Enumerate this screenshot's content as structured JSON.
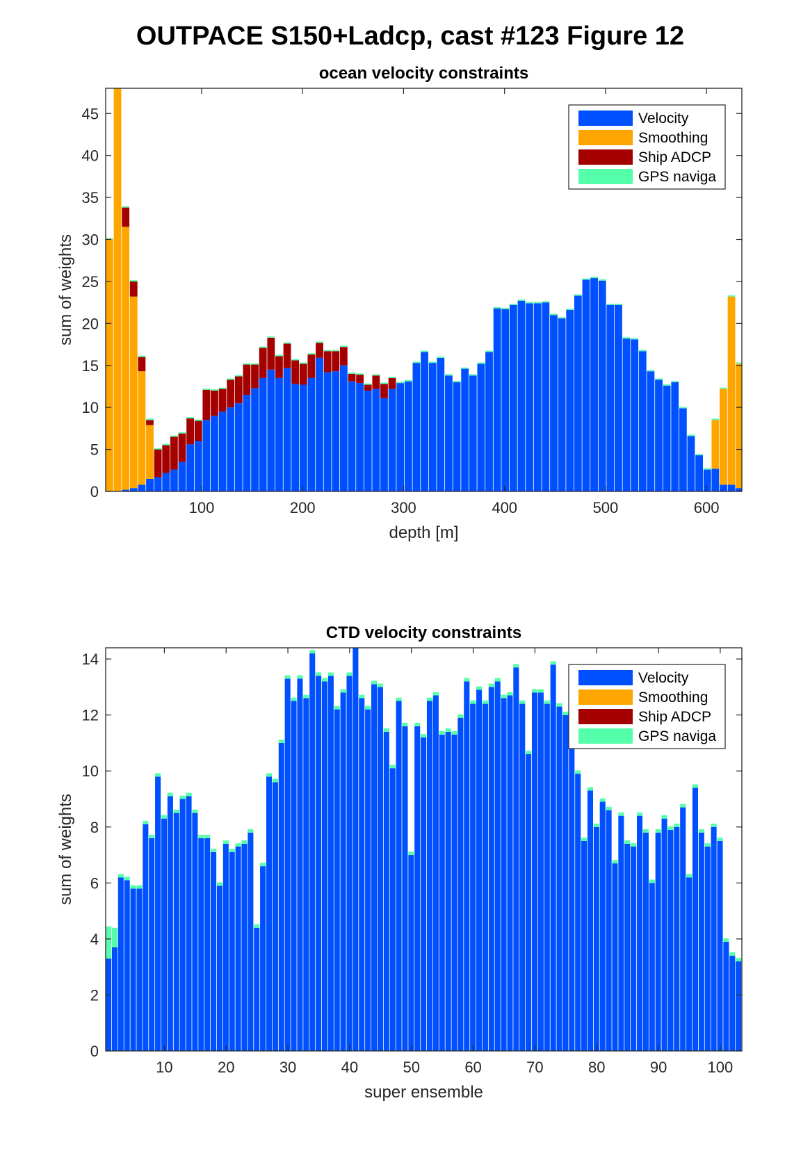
{
  "figure_title": "OUTPACE S150+Ladcp, cast #123  Figure 12",
  "legend_entries": [
    {
      "label": "Velocity",
      "color": "#0050FF"
    },
    {
      "label": "Smoothing",
      "color": "#FFA500"
    },
    {
      "label": "Ship ADCP",
      "color": "#A50000"
    },
    {
      "label": "GPS naviga",
      "color": "#55FFAA"
    }
  ],
  "chart_data": [
    {
      "type": "bar",
      "stacked": true,
      "title": "ocean velocity constraints",
      "xlabel": "depth [m]",
      "ylabel": "sum of weights",
      "xlim": [
        5,
        635
      ],
      "ylim": [
        0,
        48
      ],
      "xticks": [
        100,
        200,
        300,
        400,
        500,
        600
      ],
      "yticks": [
        0,
        5,
        10,
        15,
        20,
        25,
        30,
        35,
        40,
        45
      ],
      "legend_position": "top-right",
      "bin_width": 8,
      "x": [
        9,
        17,
        25,
        33,
        41,
        49,
        57,
        65,
        73,
        81,
        89,
        97,
        105,
        113,
        121,
        129,
        137,
        145,
        153,
        161,
        169,
        177,
        185,
        193,
        201,
        209,
        217,
        225,
        233,
        241,
        249,
        257,
        265,
        273,
        281,
        289,
        297,
        305,
        313,
        321,
        329,
        337,
        345,
        353,
        361,
        369,
        377,
        385,
        393,
        401,
        409,
        417,
        425,
        433,
        441,
        449,
        457,
        465,
        473,
        481,
        489,
        497,
        505,
        513,
        521,
        529,
        537,
        545,
        553,
        561,
        569,
        577,
        585,
        593,
        601,
        609,
        617,
        625,
        633
      ],
      "series": [
        {
          "name": "Velocity",
          "values": [
            0,
            0,
            0.2,
            0.4,
            0.8,
            1.5,
            1.7,
            2.2,
            2.6,
            3.5,
            5.6,
            6,
            8.5,
            9,
            9.5,
            10,
            10.5,
            11.5,
            12.3,
            13.5,
            14.5,
            13.5,
            14.7,
            12.8,
            12.7,
            13.5,
            15.9,
            14.2,
            14.3,
            15,
            13.1,
            12.9,
            12,
            12.2,
            11.1,
            12.2,
            12.9,
            13.1,
            15.3,
            16.6,
            15.3,
            15.9,
            13.8,
            13,
            14.6,
            13.8,
            15.2,
            16.6,
            21.8,
            21.7,
            22.2,
            22.7,
            22.4,
            22.4,
            22.5,
            21,
            20.6,
            21.6,
            23.3,
            25.2,
            25.4,
            25.1,
            22.2,
            22.2,
            18.2,
            18.1,
            16.7,
            14.3,
            13.3,
            12.6,
            13,
            9.9,
            6.6,
            4.3,
            2.6,
            2.7,
            0.8,
            0.8,
            0.4
          ]
        },
        {
          "name": "Smoothing",
          "values": [
            30,
            48,
            31.3,
            22.8,
            13.5,
            6.4,
            0,
            0,
            0,
            0,
            0,
            0,
            0,
            0,
            0,
            0,
            0,
            0,
            0,
            0,
            0,
            0,
            0,
            0,
            0,
            0,
            0,
            0,
            0,
            0,
            0,
            0,
            0,
            0,
            0,
            0,
            0,
            0,
            0,
            0,
            0,
            0,
            0,
            0,
            0,
            0,
            0,
            0,
            0,
            0,
            0,
            0,
            0,
            0,
            0,
            0,
            0,
            0,
            0,
            0,
            0,
            0,
            0,
            0,
            0,
            0,
            0,
            0,
            0,
            0,
            0,
            0,
            0,
            0,
            0,
            5.8,
            11.4,
            22.4,
            14.8
          ]
        },
        {
          "name": "Ship ADCP",
          "values": [
            0,
            0,
            2.3,
            1.8,
            1.7,
            0.6,
            3.3,
            3.3,
            3.9,
            3.4,
            3.1,
            2.4,
            3.6,
            3,
            2.7,
            3.3,
            3.2,
            3.6,
            2.8,
            3.6,
            3.8,
            2.6,
            2.9,
            2.8,
            2.5,
            2.8,
            1.8,
            2.5,
            2.4,
            2.2,
            0.9,
            1,
            0.7,
            1.6,
            1.7,
            1.3,
            0,
            0,
            0,
            0,
            0,
            0,
            0,
            0,
            0,
            0,
            0,
            0,
            0,
            0,
            0,
            0,
            0,
            0,
            0,
            0,
            0,
            0,
            0,
            0,
            0,
            0,
            0,
            0,
            0,
            0,
            0,
            0,
            0,
            0,
            0,
            0,
            0,
            0,
            0,
            0,
            0,
            0,
            0
          ]
        },
        {
          "name": "GPS naviga",
          "values": [
            0.15,
            0.15,
            0.15,
            0.15,
            0.15,
            0.15,
            0.15,
            0.15,
            0.15,
            0.15,
            0.15,
            0.15,
            0.15,
            0.15,
            0.15,
            0.15,
            0.15,
            0.15,
            0.15,
            0.15,
            0.15,
            0.15,
            0.15,
            0.15,
            0.15,
            0.15,
            0.15,
            0.15,
            0.15,
            0.15,
            0.15,
            0.15,
            0.15,
            0.15,
            0.15,
            0.15,
            0.15,
            0.15,
            0.15,
            0.15,
            0.15,
            0.15,
            0.15,
            0.15,
            0.15,
            0.15,
            0.15,
            0.15,
            0.15,
            0.15,
            0.15,
            0.15,
            0.15,
            0.15,
            0.15,
            0.15,
            0.15,
            0.15,
            0.15,
            0.15,
            0.15,
            0.15,
            0.15,
            0.15,
            0.15,
            0.15,
            0.15,
            0.15,
            0.15,
            0.15,
            0.15,
            0.15,
            0.15,
            0.15,
            0.15,
            0.15,
            0.15,
            0.15,
            0.15
          ]
        }
      ]
    },
    {
      "type": "bar",
      "stacked": true,
      "title": "CTD velocity constraints",
      "xlabel": "super ensemble",
      "ylabel": "sum of weights",
      "xlim": [
        0.5,
        103.5
      ],
      "ylim": [
        0,
        14.4
      ],
      "xticks": [
        10,
        20,
        30,
        40,
        50,
        60,
        70,
        80,
        90,
        100
      ],
      "yticks": [
        0,
        2,
        4,
        6,
        8,
        10,
        12,
        14
      ],
      "legend_position": "top-right",
      "bin_width": 1,
      "x": [
        1,
        2,
        3,
        4,
        5,
        6,
        7,
        8,
        9,
        10,
        11,
        12,
        13,
        14,
        15,
        16,
        17,
        18,
        19,
        20,
        21,
        22,
        23,
        24,
        25,
        26,
        27,
        28,
        29,
        30,
        31,
        32,
        33,
        34,
        35,
        36,
        37,
        38,
        39,
        40,
        41,
        42,
        43,
        44,
        45,
        46,
        47,
        48,
        49,
        50,
        51,
        52,
        53,
        54,
        55,
        56,
        57,
        58,
        59,
        60,
        61,
        62,
        63,
        64,
        65,
        66,
        67,
        68,
        69,
        70,
        71,
        72,
        73,
        74,
        75,
        76,
        77,
        78,
        79,
        80,
        81,
        82,
        83,
        84,
        85,
        86,
        87,
        88,
        89,
        90,
        91,
        92,
        93,
        94,
        95,
        96,
        97,
        98,
        99,
        100,
        101,
        102,
        103
      ],
      "series": [
        {
          "name": "Velocity",
          "values": [
            3.3,
            3.7,
            6.2,
            6.1,
            5.8,
            5.8,
            8.1,
            7.6,
            9.8,
            8.3,
            9.1,
            8.5,
            9,
            9.1,
            8.5,
            7.6,
            7.6,
            7.1,
            5.9,
            7.4,
            7.1,
            7.3,
            7.4,
            7.8,
            4.4,
            6.6,
            9.8,
            9.6,
            11,
            13.3,
            12.5,
            13.3,
            12.6,
            14.2,
            13.4,
            13.2,
            13.4,
            12.2,
            12.8,
            13.4,
            14.4,
            12.6,
            12.2,
            13.1,
            13,
            11.4,
            10.1,
            12.5,
            11.6,
            7,
            11.6,
            11.2,
            12.5,
            12.7,
            11.3,
            11.4,
            11.3,
            11.9,
            13.2,
            12.4,
            12.9,
            12.4,
            13,
            13.2,
            12.6,
            12.7,
            13.7,
            12.4,
            10.6,
            12.8,
            12.8,
            12.4,
            13.8,
            12.3,
            12,
            11,
            9.9,
            7.5,
            9.3,
            8,
            8.9,
            8.6,
            6.7,
            8.4,
            7.4,
            7.3,
            8.4,
            7.8,
            6,
            7.8,
            8.3,
            7.9,
            8,
            8.7,
            6.2,
            9.4,
            7.8,
            7.3,
            8,
            7.5,
            3.9,
            3.4,
            3.2
          ]
        },
        {
          "name": "Smoothing",
          "values": [
            0,
            0,
            0,
            0,
            0,
            0,
            0,
            0,
            0,
            0,
            0,
            0,
            0,
            0,
            0,
            0,
            0,
            0,
            0,
            0,
            0,
            0,
            0,
            0,
            0,
            0,
            0,
            0,
            0,
            0,
            0,
            0,
            0,
            0,
            0,
            0,
            0,
            0,
            0,
            0,
            0,
            0,
            0,
            0,
            0,
            0,
            0,
            0,
            0,
            0,
            0,
            0,
            0,
            0,
            0,
            0,
            0,
            0,
            0,
            0,
            0,
            0,
            0,
            0,
            0,
            0,
            0,
            0,
            0,
            0,
            0,
            0,
            0,
            0,
            0,
            0,
            0,
            0,
            0,
            0,
            0,
            0,
            0,
            0,
            0,
            0,
            0,
            0,
            0,
            0,
            0,
            0,
            0,
            0,
            0,
            0,
            0,
            0,
            0,
            0,
            0,
            0,
            0
          ]
        },
        {
          "name": "Ship ADCP",
          "values": [
            0,
            0,
            0,
            0,
            0,
            0,
            0,
            0,
            0,
            0,
            0,
            0,
            0,
            0,
            0,
            0,
            0,
            0,
            0,
            0,
            0,
            0,
            0,
            0,
            0,
            0,
            0,
            0,
            0,
            0,
            0,
            0,
            0,
            0,
            0,
            0,
            0,
            0,
            0,
            0,
            0,
            0,
            0,
            0,
            0,
            0,
            0,
            0,
            0,
            0,
            0,
            0,
            0,
            0,
            0,
            0,
            0,
            0,
            0,
            0,
            0,
            0,
            0,
            0,
            0,
            0,
            0,
            0,
            0,
            0,
            0,
            0,
            0,
            0,
            0,
            0,
            0,
            0,
            0,
            0,
            0,
            0,
            0,
            0,
            0,
            0,
            0,
            0,
            0,
            0,
            0,
            0,
            0,
            0,
            0,
            0,
            0,
            0,
            0,
            0,
            0,
            0,
            0
          ]
        },
        {
          "name": "GPS naviga",
          "values": [
            1.15,
            0.7,
            0.12,
            0.12,
            0.12,
            0.12,
            0.12,
            0.12,
            0.12,
            0.12,
            0.12,
            0.12,
            0.12,
            0.12,
            0.12,
            0.12,
            0.12,
            0.12,
            0.12,
            0.12,
            0.12,
            0.12,
            0.12,
            0.12,
            0.12,
            0.12,
            0.12,
            0.12,
            0.12,
            0.12,
            0.12,
            0.12,
            0.12,
            0.12,
            0.12,
            0.12,
            0.12,
            0.12,
            0.12,
            0.12,
            0.12,
            0.12,
            0.12,
            0.12,
            0.12,
            0.12,
            0.12,
            0.12,
            0.12,
            0.12,
            0.12,
            0.12,
            0.12,
            0.12,
            0.12,
            0.12,
            0.12,
            0.12,
            0.12,
            0.12,
            0.12,
            0.12,
            0.12,
            0.12,
            0.12,
            0.12,
            0.12,
            0.12,
            0.12,
            0.12,
            0.12,
            0.12,
            0.12,
            0.12,
            0.12,
            0.12,
            0.12,
            0.12,
            0.12,
            0.12,
            0.12,
            0.12,
            0.12,
            0.12,
            0.12,
            0.12,
            0.12,
            0.12,
            0.12,
            0.12,
            0.12,
            0.12,
            0.12,
            0.12,
            0.12,
            0.12,
            0.12,
            0.12,
            0.12,
            0.12,
            0.12,
            0.12,
            0.12
          ]
        }
      ]
    }
  ]
}
